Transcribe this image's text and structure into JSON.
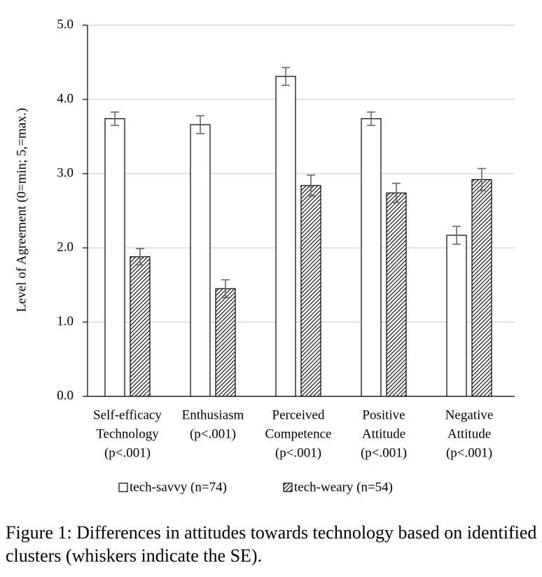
{
  "chart_data": {
    "type": "bar",
    "y_label": "Level of Agreement (0=min; 5,=max.)",
    "categories": [
      [
        "Self-efficacy",
        "Technology",
        "(p<.001)"
      ],
      [
        "Enthusiasm",
        "(p<.001)"
      ],
      [
        "Perceived",
        "Competence",
        "(p<.001)"
      ],
      [
        "Positive",
        "Attitude",
        "(p<.001)"
      ],
      [
        "Negative",
        "Attitude",
        "(p<.001)"
      ]
    ],
    "series": [
      {
        "name": "tech-savvy (n=74)",
        "color": "#ffffff",
        "values": [
          3.74,
          3.66,
          4.31,
          3.74,
          2.17
        ],
        "errors": [
          0.09,
          0.12,
          0.12,
          0.09,
          0.12
        ]
      },
      {
        "name": "tech-weary (n=54)",
        "color": "#000000",
        "hatch": true,
        "values": [
          1.88,
          1.45,
          2.84,
          2.74,
          2.92
        ],
        "errors": [
          0.11,
          0.12,
          0.14,
          0.13,
          0.15
        ]
      }
    ],
    "ylim": [
      0,
      5
    ],
    "yticks": [
      {
        "value": 0,
        "label": "0.0"
      },
      {
        "value": 1,
        "label": "1.0"
      },
      {
        "value": 2,
        "label": "2.0"
      },
      {
        "value": 3,
        "label": "3.0"
      },
      {
        "value": 4,
        "label": "4.0"
      },
      {
        "value": 5,
        "label": "5.0"
      }
    ],
    "grid": true,
    "caption": "Figure 1: Differences in attitudes towards technology based on identified clusters (whiskers indicate the SE)."
  }
}
